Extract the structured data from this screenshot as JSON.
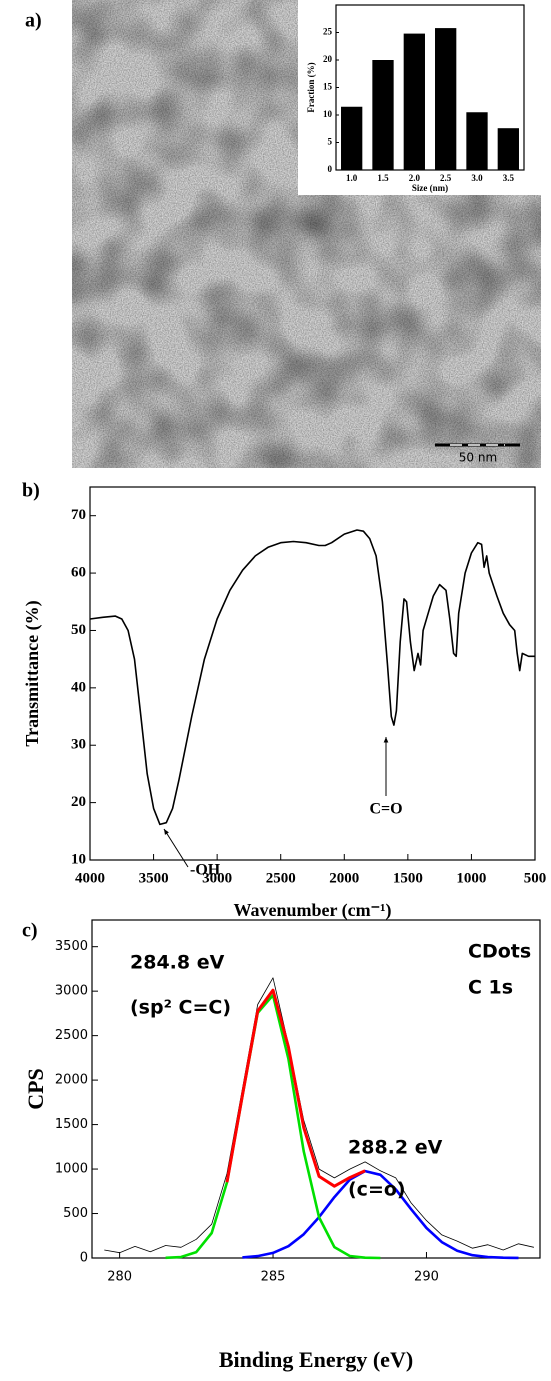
{
  "chart_data": [
    {
      "type": "bar",
      "panel_label": "a)",
      "scale_bar": "50 nm",
      "x_label": "Size (nm)",
      "y_label": "Fraction (%)",
      "categories": [
        "1.0",
        "1.5",
        "2.0",
        "2.5",
        "3.0",
        "3.5"
      ],
      "values": [
        11.5,
        20,
        24.8,
        25.8,
        10.5,
        7.6
      ],
      "color": "#000000",
      "ylim": [
        0,
        30
      ],
      "yticks": [
        0,
        5,
        10,
        15,
        20,
        25
      ]
    },
    {
      "type": "line",
      "panel_label": "b)",
      "x_label": "Wavenumber (cm⁻¹)",
      "y_label": "Transmittance (%)",
      "annotations": [
        "-OH",
        "C=O"
      ],
      "x": [
        4000,
        3900,
        3800,
        3750,
        3700,
        3650,
        3600,
        3550,
        3500,
        3450,
        3400,
        3350,
        3300,
        3200,
        3100,
        3000,
        2900,
        2800,
        2700,
        2600,
        2500,
        2400,
        2300,
        2200,
        2150,
        2100,
        2000,
        1900,
        1850,
        1800,
        1750,
        1700,
        1660,
        1630,
        1610,
        1590,
        1560,
        1530,
        1510,
        1480,
        1450,
        1420,
        1400,
        1380,
        1340,
        1300,
        1250,
        1200,
        1170,
        1140,
        1120,
        1100,
        1050,
        1000,
        950,
        920,
        900,
        880,
        860,
        800,
        750,
        700,
        660,
        640,
        620,
        600,
        550,
        500
      ],
      "series": [
        {
          "color": "#000000",
          "values": [
            52,
            52.3,
            52.5,
            52,
            50,
            45,
            35,
            25,
            19,
            16.2,
            16.5,
            19,
            24,
            35,
            45,
            52,
            57,
            60.5,
            63,
            64.5,
            65.3,
            65.5,
            65.3,
            64.8,
            64.8,
            65.3,
            66.8,
            67.5,
            67.3,
            66,
            63,
            55,
            44,
            35,
            33.5,
            36,
            48,
            55.5,
            55,
            48,
            43,
            46,
            44,
            50,
            53,
            56,
            58,
            57,
            52,
            46,
            45.5,
            53,
            60,
            63.5,
            65.3,
            65,
            61,
            63,
            60,
            56,
            53,
            51,
            50,
            46,
            43,
            46,
            45.5,
            45.5
          ]
        }
      ],
      "xlim": [
        4000,
        500
      ],
      "xticks": [
        4000,
        3500,
        3000,
        2500,
        2000,
        1500,
        1000,
        500
      ],
      "ylim": [
        10,
        75
      ],
      "yticks": [
        10,
        20,
        30,
        40,
        50,
        60,
        70
      ]
    },
    {
      "type": "line",
      "panel_label": "c)",
      "x_label": "Binding Energy (eV)",
      "y_label": "CPS",
      "annotations": [
        "284.8 eV",
        "(sp² C=C)",
        "288.2 eV",
        "(c=o)",
        "CDots",
        "C 1s"
      ],
      "x": [
        279.5,
        280,
        280.5,
        281,
        281.5,
        282,
        282.5,
        283,
        283.5,
        284,
        284.5,
        285,
        285.5,
        286,
        286.5,
        287,
        287.5,
        288,
        288.5,
        289,
        289.5,
        290,
        290.5,
        291,
        291.5,
        292,
        292.5,
        293,
        293.5
      ],
      "series": [
        {
          "color": "#000000",
          "values": [
            90,
            60,
            130,
            70,
            140,
            120,
            210,
            380,
            950,
            1900,
            2850,
            3150,
            2400,
            1550,
            1000,
            900,
            1000,
            1080,
            980,
            900,
            620,
            420,
            260,
            190,
            110,
            150,
            90,
            160,
            120
          ]
        },
        {
          "color": "#0000ff",
          "values": [
            null,
            null,
            null,
            null,
            null,
            null,
            null,
            null,
            null,
            7,
            21,
            57,
            133,
            267,
            460,
            685,
            881,
            977,
            935,
            771,
            549,
            337,
            179,
            81,
            32,
            11,
            3,
            1,
            null
          ]
        },
        {
          "color": "#00e000",
          "values": [
            null,
            null,
            null,
            null,
            2,
            11,
            66,
            281,
            850,
            1820,
            2756,
            2954,
            2240,
            1201,
            457,
            122,
            23,
            3,
            0,
            null,
            null,
            null,
            null,
            null,
            null,
            null,
            null,
            null,
            null
          ]
        },
        {
          "color": "#ff0000",
          "values": [
            null,
            null,
            null,
            null,
            null,
            null,
            null,
            null,
            852,
            1827,
            2777,
            3011,
            2373,
            1468,
            917,
            807,
            904,
            980,
            null,
            null,
            null,
            null,
            null,
            null,
            null,
            null,
            null,
            null,
            null
          ]
        }
      ],
      "xlim": [
        279.1,
        293.7
      ],
      "xticks": [
        280,
        285,
        290
      ],
      "ylim": [
        0,
        3800
      ],
      "yticks": [
        0,
        500,
        1000,
        1500,
        2000,
        2500,
        3000,
        3500
      ]
    }
  ]
}
